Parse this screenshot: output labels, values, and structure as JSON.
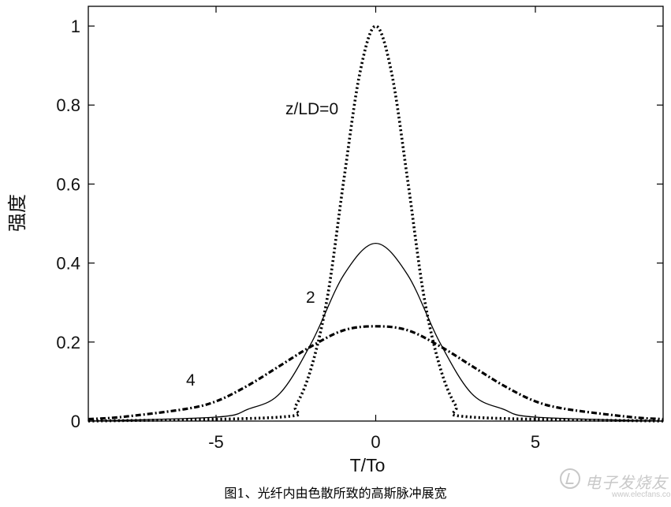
{
  "chart_data": {
    "type": "line",
    "title": "",
    "xlabel": "T/To",
    "ylabel": "强度",
    "xlim": [
      -9,
      9
    ],
    "ylim": [
      0,
      1.05
    ],
    "x_ticks": [
      -5,
      0,
      5
    ],
    "x_tick_labels": [
      "-5",
      "0",
      "5"
    ],
    "y_ticks": [
      0,
      0.2,
      0.4,
      0.6,
      0.8,
      1
    ],
    "y_tick_labels": [
      "0",
      "0.2",
      "0.4",
      "0.6",
      "0.8",
      "1"
    ],
    "grid": false,
    "legend": "none",
    "series": [
      {
        "label": "z/LD=0",
        "style": "dotted",
        "x": [
          -9,
          -3,
          -2.5,
          -2,
          -1.5,
          -1,
          -0.5,
          0,
          0.5,
          1,
          1.5,
          2,
          2.5,
          3,
          9
        ],
        "y": [
          0,
          0.01,
          0.04,
          0.14,
          0.32,
          0.61,
          0.88,
          1.0,
          0.88,
          0.61,
          0.32,
          0.14,
          0.04,
          0.01,
          0
        ]
      },
      {
        "label": "2",
        "style": "solid",
        "x": [
          -9,
          -5,
          -4,
          -3,
          -2,
          -1,
          0,
          1,
          2,
          3,
          4,
          5,
          9
        ],
        "y": [
          0,
          0.01,
          0.03,
          0.07,
          0.2,
          0.37,
          0.45,
          0.37,
          0.2,
          0.07,
          0.03,
          0.01,
          0
        ]
      },
      {
        "label": "4",
        "style": "dashdot",
        "x": [
          -9,
          -8,
          -6,
          -5,
          -4,
          -3,
          -2,
          -1,
          0,
          1,
          2,
          3,
          4,
          5,
          6,
          8,
          9
        ],
        "y": [
          0.005,
          0.01,
          0.03,
          0.05,
          0.09,
          0.14,
          0.19,
          0.23,
          0.24,
          0.23,
          0.19,
          0.14,
          0.09,
          0.05,
          0.03,
          0.01,
          0.005
        ]
      }
    ],
    "annotations": [
      {
        "text": "z/LD=0",
        "series": 0
      },
      {
        "text": "2",
        "series": 1
      },
      {
        "text": "4",
        "series": 2
      }
    ]
  },
  "caption": "图1、光纤内由色散所致的高斯脉冲展宽",
  "watermark": {
    "text": "电子发烧友",
    "url": "www.elecfans.com"
  }
}
